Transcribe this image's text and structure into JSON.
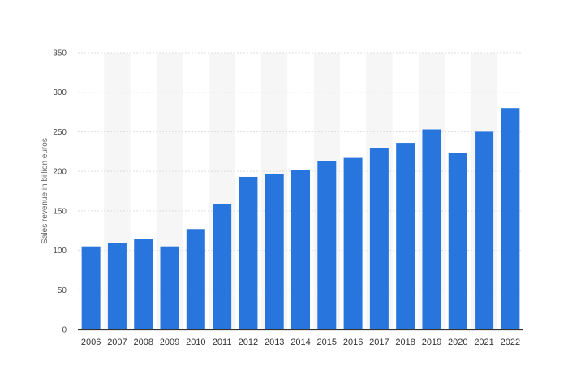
{
  "chart_data": {
    "type": "bar",
    "ylabel": "Sales revenue in billion euros",
    "xlabel": "",
    "title": "",
    "categories": [
      "2006",
      "2007",
      "2008",
      "2009",
      "2010",
      "2011",
      "2012",
      "2013",
      "2014",
      "2015",
      "2016",
      "2017",
      "2018",
      "2019",
      "2020",
      "2021",
      "2022"
    ],
    "series": [
      {
        "values": [
          105,
          109,
          114,
          105,
          127,
          159,
          193,
          197,
          202,
          213,
          217,
          229,
          236,
          253,
          223,
          250,
          280
        ],
        "color": "#2876dd"
      }
    ],
    "ylim": [
      0,
      350
    ],
    "yticks": [
      0,
      50,
      100,
      150,
      200,
      250,
      300,
      350
    ],
    "grid": true,
    "legend": "none",
    "band_color": "#f6f6f6",
    "grid_color": "#dddddd",
    "axis_color": "#333333"
  }
}
